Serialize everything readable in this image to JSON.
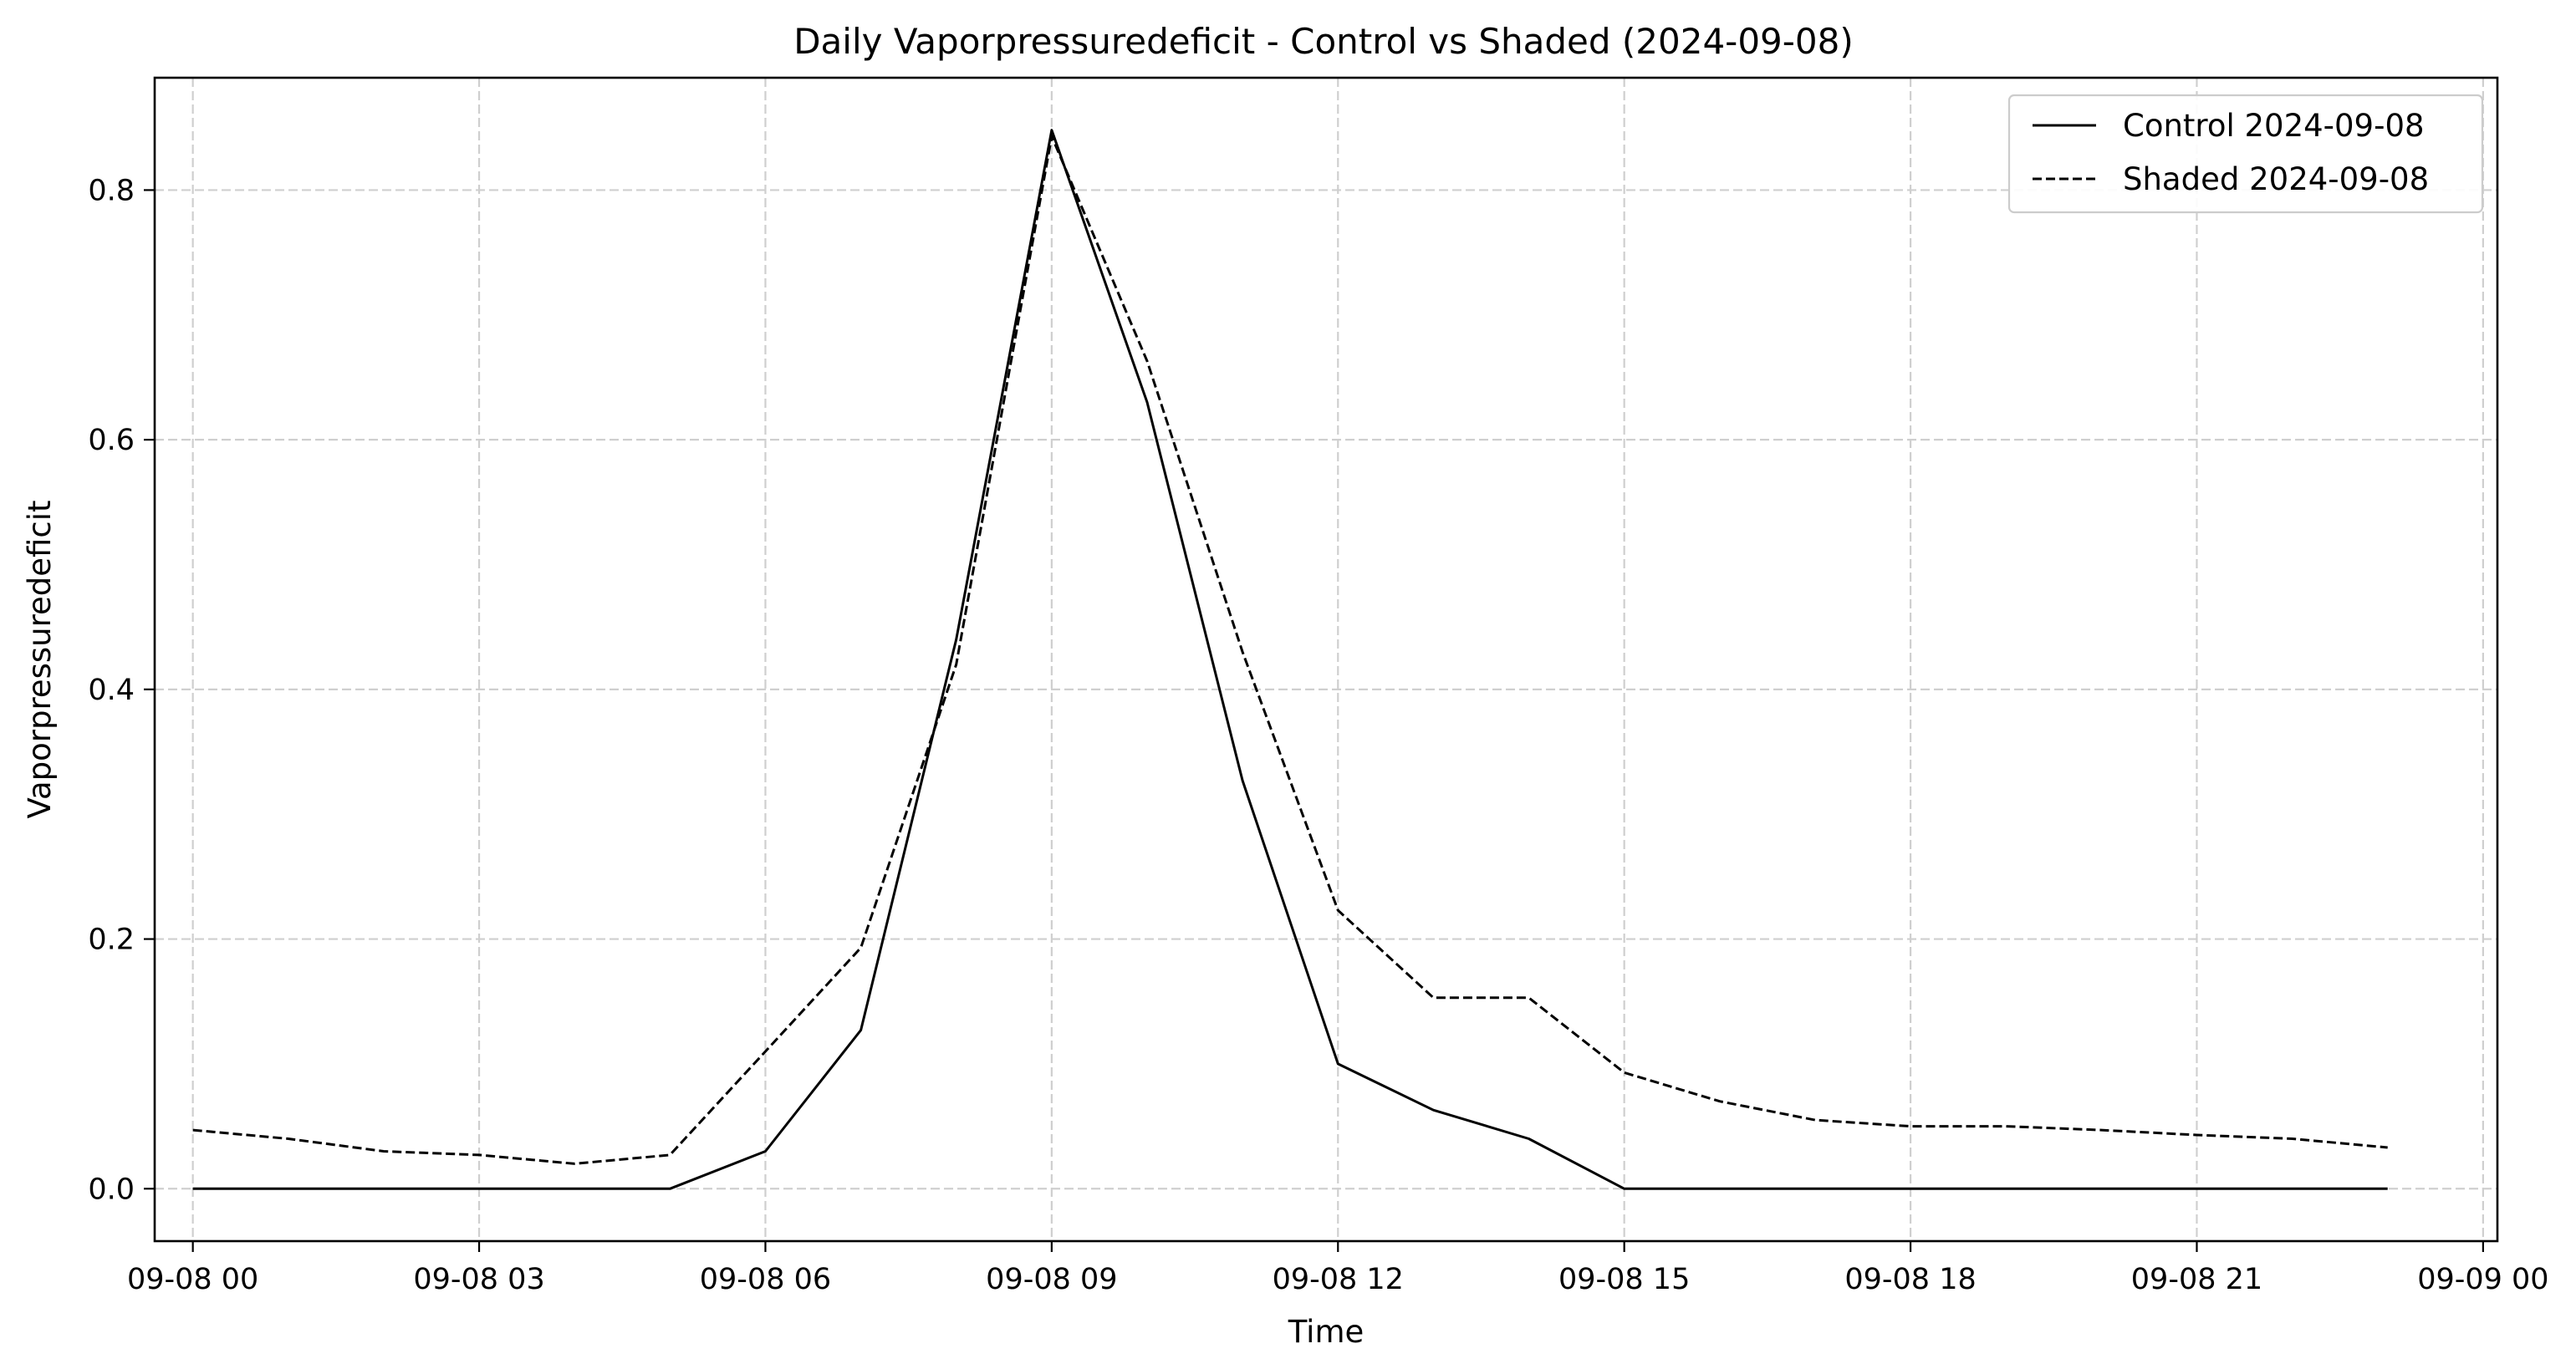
{
  "chart_data": {
    "type": "line",
    "title": "Daily Vaporpressuredeficit - Control vs Shaded (2024-09-08)",
    "xlabel": "Time",
    "ylabel": "Vaporpressuredeficit",
    "x_unit": "hour",
    "xlim": [
      -0.4,
      24.15
    ],
    "ylim": [
      -0.042,
      0.89
    ],
    "grid": true,
    "legend_position": "top-right",
    "x": [
      0,
      1,
      2,
      3,
      4,
      5,
      6,
      7,
      8,
      9,
      10,
      11,
      12,
      13,
      14,
      15,
      16,
      17,
      18,
      19,
      20,
      21,
      22,
      23
    ],
    "x_ticks": [
      {
        "value": 0,
        "label": "09-08 00"
      },
      {
        "value": 3,
        "label": "09-08 03"
      },
      {
        "value": 6,
        "label": "09-08 06"
      },
      {
        "value": 9,
        "label": "09-08 09"
      },
      {
        "value": 12,
        "label": "09-08 12"
      },
      {
        "value": 15,
        "label": "09-08 15"
      },
      {
        "value": 18,
        "label": "09-08 18"
      },
      {
        "value": 21,
        "label": "09-08 21"
      },
      {
        "value": 24,
        "label": "09-09 00"
      }
    ],
    "y_ticks": [
      {
        "value": 0.0,
        "label": "0.0"
      },
      {
        "value": 0.2,
        "label": "0.2"
      },
      {
        "value": 0.4,
        "label": "0.4"
      },
      {
        "value": 0.6,
        "label": "0.6"
      },
      {
        "value": 0.8,
        "label": "0.8"
      }
    ],
    "series": [
      {
        "name": "Control 2024-09-08",
        "style": "solid",
        "color": "#000000",
        "values": [
          0.0,
          0.0,
          0.0,
          0.0,
          0.0,
          0.0,
          0.03,
          0.127,
          0.44,
          0.848,
          0.63,
          0.327,
          0.1,
          0.063,
          0.04,
          0.0,
          0.0,
          0.0,
          0.0,
          0.0,
          0.0,
          0.0,
          0.0,
          0.0
        ]
      },
      {
        "name": "Shaded 2024-09-08",
        "style": "dashed",
        "color": "#000000",
        "values": [
          0.047,
          0.04,
          0.03,
          0.027,
          0.02,
          0.027,
          0.11,
          0.193,
          0.42,
          0.843,
          0.663,
          0.43,
          0.223,
          0.153,
          0.153,
          0.093,
          0.07,
          0.055,
          0.05,
          0.05,
          0.047,
          0.043,
          0.04,
          0.033
        ]
      }
    ]
  }
}
